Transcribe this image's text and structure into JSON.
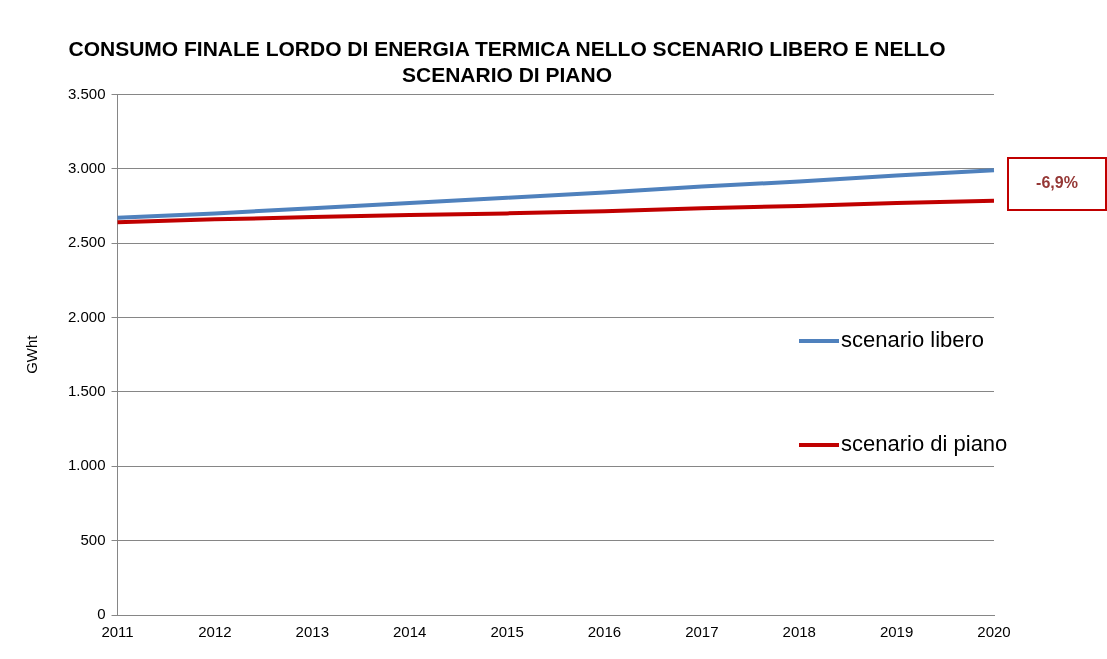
{
  "chart_data": {
    "type": "line",
    "title": "CONSUMO FINALE LORDO DI ENERGIA TERMICA NELLO SCENARIO LIBERO E NELLO SCENARIO DI PIANO",
    "ylabel": "GWht",
    "categories": [
      "2011",
      "2012",
      "2013",
      "2014",
      "2015",
      "2016",
      "2017",
      "2018",
      "2019",
      "2020"
    ],
    "series": [
      {
        "name": "scenario libero",
        "color": "#4f81bd",
        "values": [
          2670,
          2700,
          2735,
          2770,
          2805,
          2840,
          2880,
          2915,
          2955,
          2990
        ]
      },
      {
        "name": "scenario di piano",
        "color": "#c00000",
        "values": [
          2640,
          2660,
          2675,
          2690,
          2700,
          2715,
          2735,
          2750,
          2770,
          2785
        ]
      }
    ],
    "ylim": [
      0,
      3500
    ],
    "yticks": [
      {
        "value": 0,
        "label": "0"
      },
      {
        "value": 500,
        "label": "500"
      },
      {
        "value": 1000,
        "label": "1.000"
      },
      {
        "value": 1500,
        "label": "1.500"
      },
      {
        "value": 2000,
        "label": "2.000"
      },
      {
        "value": 2500,
        "label": "2.500"
      },
      {
        "value": 3000,
        "label": "3.000"
      },
      {
        "value": 3500,
        "label": "3.500"
      }
    ],
    "grid": "y",
    "legend": "right",
    "marker": "none",
    "line_style": "solid",
    "annotations": [
      "-6,9%"
    ]
  }
}
